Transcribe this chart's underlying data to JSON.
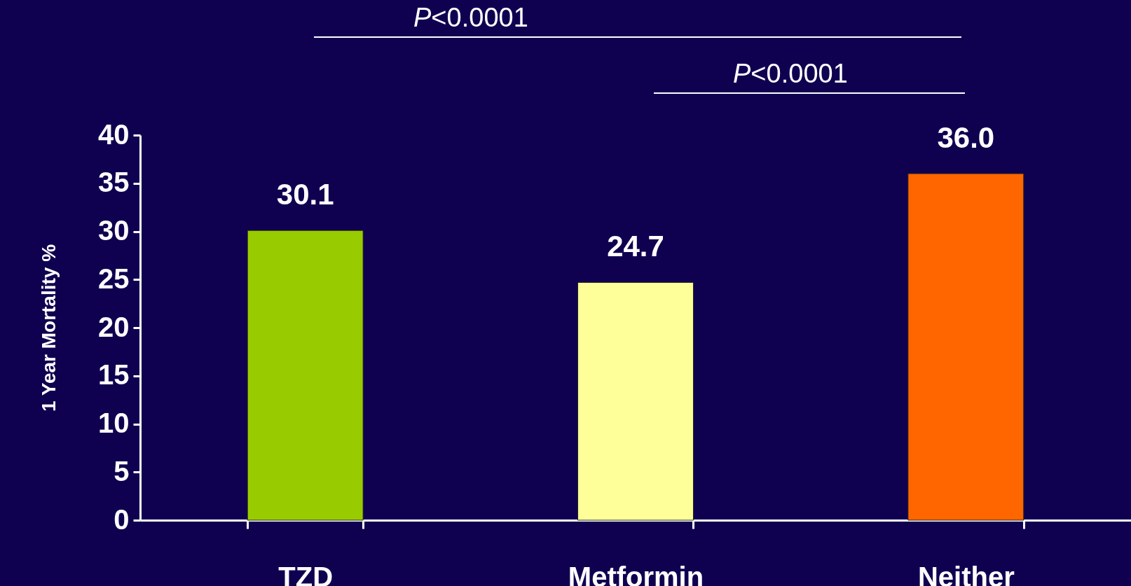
{
  "chart_data": {
    "type": "bar",
    "ylabel": "1 Year Mortality %",
    "categories": [
      "TZD",
      "Metformin",
      "Neither"
    ],
    "values": [
      30.1,
      24.7,
      36.0
    ],
    "colors": [
      "#99cc00",
      "#ffff99",
      "#ff6600"
    ],
    "value_labels": [
      "30.1",
      "24.7",
      "36.0"
    ],
    "ylim": [
      0,
      40
    ],
    "yticks": [
      0,
      5,
      10,
      15,
      20,
      25,
      30,
      35,
      40
    ],
    "grid": false,
    "annotations": [
      "P<0.0001",
      "P<0.0001"
    ]
  }
}
